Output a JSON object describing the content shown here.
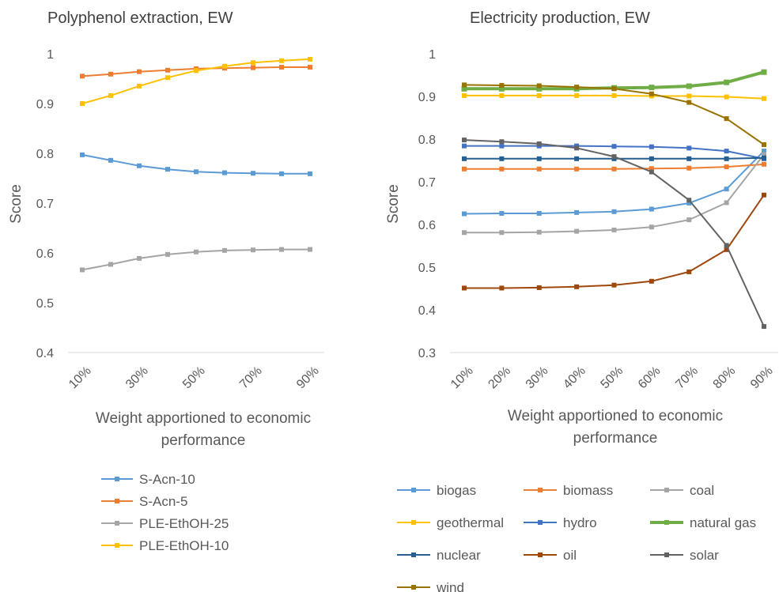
{
  "chart_data": [
    {
      "type": "line",
      "title": "Polyphenol extraction, EW",
      "xlabel_lines": [
        "Weight apportioned to economic",
        "performance"
      ],
      "ylabel": "Score",
      "ylim": [
        0.4,
        1.0
      ],
      "yticks": [
        "0.4",
        "0.5",
        "0.6",
        "0.7",
        "0.8",
        "0.9",
        "1"
      ],
      "categories": [
        "10%",
        "20%",
        "30%",
        "40%",
        "50%",
        "60%",
        "70%",
        "80%",
        "90%"
      ],
      "xtick_labels_shown": [
        "10%",
        "30%",
        "50%",
        "70%",
        "90%"
      ],
      "legend_position": "bottom",
      "series": [
        {
          "name": "S-Acn-10",
          "color": "#5B9BD5",
          "values": [
            0.797,
            0.786,
            0.775,
            0.768,
            0.763,
            0.761,
            0.76,
            0.759,
            0.759
          ]
        },
        {
          "name": "S-Acn-5",
          "color": "#ED7D31",
          "values": [
            0.955,
            0.959,
            0.964,
            0.967,
            0.97,
            0.971,
            0.972,
            0.973,
            0.973
          ]
        },
        {
          "name": "PLE-EthOH-25",
          "color": "#A5A5A5",
          "values": [
            0.566,
            0.577,
            0.589,
            0.597,
            0.602,
            0.605,
            0.606,
            0.607,
            0.607
          ]
        },
        {
          "name": "PLE-EthOH-10",
          "color": "#FFC000",
          "values": [
            0.9,
            0.916,
            0.935,
            0.952,
            0.966,
            0.975,
            0.982,
            0.986,
            0.989
          ]
        }
      ]
    },
    {
      "type": "line",
      "title": "Electricity production, EW",
      "xlabel_lines": [
        "Weight apportioned to economic",
        "performance"
      ],
      "ylabel": "Score",
      "ylim": [
        0.3,
        1.0
      ],
      "yticks": [
        "0.3",
        "0.4",
        "0.5",
        "0.6",
        "0.7",
        "0.8",
        "0.9",
        "1"
      ],
      "categories": [
        "10%",
        "20%",
        "30%",
        "40%",
        "50%",
        "60%",
        "70%",
        "80%",
        "90%"
      ],
      "xtick_labels_shown": [
        "10%",
        "20%",
        "30%",
        "40%",
        "50%",
        "60%",
        "70%",
        "80%",
        "90%"
      ],
      "legend_position": "bottom",
      "series": [
        {
          "name": "biogas",
          "color": "#5B9BD5",
          "values": [
            0.625,
            0.626,
            0.626,
            0.628,
            0.63,
            0.636,
            0.65,
            0.683,
            0.772
          ]
        },
        {
          "name": "biomass",
          "color": "#ED7D31",
          "values": [
            0.73,
            0.73,
            0.73,
            0.73,
            0.73,
            0.731,
            0.732,
            0.735,
            0.741
          ]
        },
        {
          "name": "coal",
          "color": "#A5A5A5",
          "values": [
            0.581,
            0.581,
            0.582,
            0.584,
            0.587,
            0.594,
            0.611,
            0.651,
            0.764
          ]
        },
        {
          "name": "geothermal",
          "color": "#FFC000",
          "values": [
            0.902,
            0.902,
            0.902,
            0.902,
            0.902,
            0.901,
            0.901,
            0.899,
            0.895
          ]
        },
        {
          "name": "hydro",
          "color": "#4472C4",
          "values": [
            0.784,
            0.784,
            0.784,
            0.784,
            0.783,
            0.782,
            0.779,
            0.772,
            0.754
          ]
        },
        {
          "name": "natural gas",
          "color": "#70AD47",
          "values": [
            0.918,
            0.918,
            0.918,
            0.918,
            0.92,
            0.921,
            0.924,
            0.933,
            0.957
          ]
        },
        {
          "name": "nuclear",
          "color": "#255E91",
          "values": [
            0.754,
            0.754,
            0.754,
            0.754,
            0.754,
            0.754,
            0.754,
            0.754,
            0.756
          ]
        },
        {
          "name": "oil",
          "color": "#9E480E",
          "values": [
            0.451,
            0.451,
            0.452,
            0.454,
            0.458,
            0.467,
            0.489,
            0.541,
            0.669
          ]
        },
        {
          "name": "solar",
          "color": "#636363",
          "values": [
            0.798,
            0.794,
            0.789,
            0.779,
            0.759,
            0.723,
            0.657,
            0.551,
            0.361
          ]
        },
        {
          "name": "wind",
          "color": "#997300",
          "values": [
            0.927,
            0.926,
            0.925,
            0.922,
            0.918,
            0.906,
            0.886,
            0.848,
            0.787
          ]
        }
      ]
    }
  ]
}
